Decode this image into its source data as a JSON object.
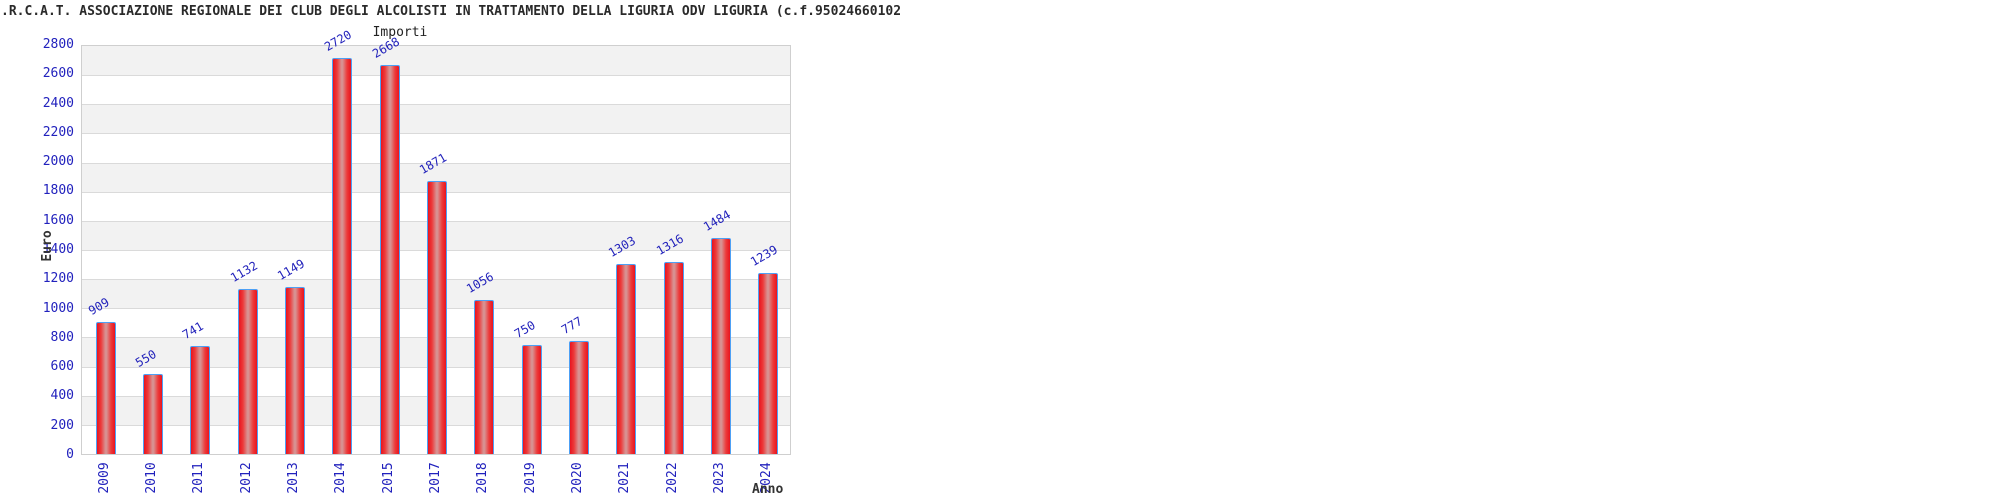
{
  "page_title": ".R.C.A.T. ASSOCIAZIONE REGIONALE DEI CLUB DEGLI ALCOLISTI IN TRATTAMENTO DELLA LIGURIA ODV LIGURIA (c.f.95024660102",
  "chart_data": {
    "type": "bar",
    "title": "Importi",
    "xlabel": "Anno",
    "ylabel": "Euro",
    "categories": [
      "2009",
      "2010",
      "2011",
      "2012",
      "2013",
      "2014",
      "2015",
      "2017",
      "2018",
      "2019",
      "2020",
      "2021",
      "2022",
      "2023",
      "2024"
    ],
    "values": [
      909,
      550,
      741,
      1132,
      1149,
      2720,
      2668,
      1871,
      1056,
      750,
      777,
      1303,
      1316,
      1484,
      1239
    ],
    "ylim": [
      0,
      2800
    ],
    "ytick_step": 200,
    "grid": true,
    "legend_position": "none",
    "note": "year 2016 absent from axis",
    "colors": {
      "bar_edge": "#e9141f",
      "bar_mid": "#ec3a3a",
      "bar_highlight": "#d89090",
      "bar_border": "#4da0f5",
      "value_label": "#2222bb",
      "tick_label": "#2121bd",
      "band": "#f2f2f2",
      "gridline": "#dadada",
      "plot_border": "#cfcfcf",
      "axis_title": "#333333",
      "title": "#2a2a2a"
    }
  }
}
